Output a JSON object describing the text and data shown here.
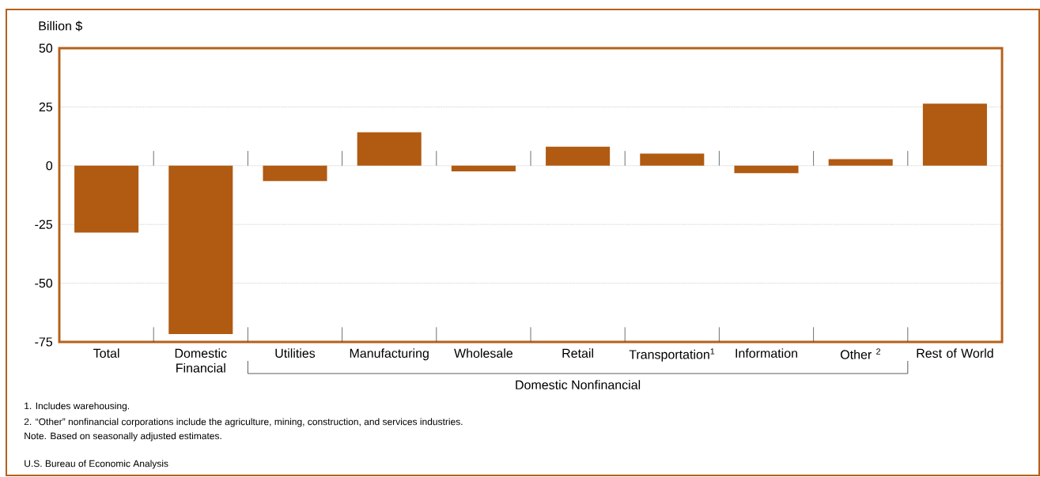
{
  "chart_data": {
    "type": "bar",
    "ylabel": "Billion $",
    "categories": [
      "Total",
      "Domestic Financial",
      "Utilities",
      "Manufacturing",
      "Wholesale",
      "Retail",
      "Transportation$^{1}$",
      "Information",
      "Other $^{2}$",
      "Rest of World"
    ],
    "values": [
      -28.5,
      -71.6,
      -6.5,
      14.2,
      -2.4,
      8.1,
      5.1,
      -3.2,
      2.8,
      26.4
    ],
    "color": "#b05a12",
    "ylim": [
      -75,
      50
    ],
    "yticks": [
      -75,
      -50,
      -25,
      0,
      25,
      50
    ],
    "grid": "y",
    "annotations": [
      "Domestic Nonfinancial",
      "1. Includes warehousing.",
      "2. “Other” nonfinancial corporations include the agriculture, mining, construction, and services industries.",
      "Note. Based on seasonally adjusted estimates.",
      "U.S. Bureau of Economic Analysis"
    ]
  }
}
